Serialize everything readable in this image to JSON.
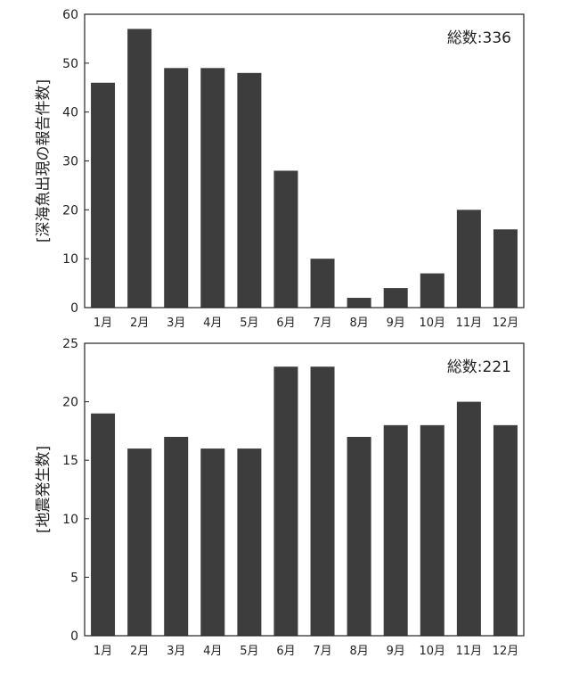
{
  "chart_data": [
    {
      "type": "bar",
      "title": "",
      "annotation": "総数:336",
      "xlabel": "",
      "ylabel": "[深海魚出現の報告件数]",
      "categories": [
        "1月",
        "2月",
        "3月",
        "4月",
        "5月",
        "6月",
        "7月",
        "8月",
        "9月",
        "10月",
        "11月",
        "12月"
      ],
      "values": [
        46,
        57,
        49,
        49,
        48,
        28,
        10,
        2,
        4,
        7,
        20,
        16
      ],
      "ylim": [
        0,
        60
      ],
      "yticks": [
        0,
        10,
        20,
        30,
        40,
        50,
        60
      ],
      "bar_color": "#3d3d3d",
      "grid": false
    },
    {
      "type": "bar",
      "title": "",
      "annotation": "総数:221",
      "xlabel": "",
      "ylabel": "[地震発生数]",
      "categories": [
        "1月",
        "2月",
        "3月",
        "4月",
        "5月",
        "6月",
        "7月",
        "8月",
        "9月",
        "10月",
        "11月",
        "12月"
      ],
      "values": [
        19,
        16,
        17,
        16,
        16,
        23,
        23,
        17,
        18,
        18,
        20,
        18
      ],
      "ylim": [
        0,
        25
      ],
      "yticks": [
        0,
        5,
        10,
        15,
        20,
        25
      ],
      "bar_color": "#3d3d3d",
      "grid": false
    }
  ]
}
